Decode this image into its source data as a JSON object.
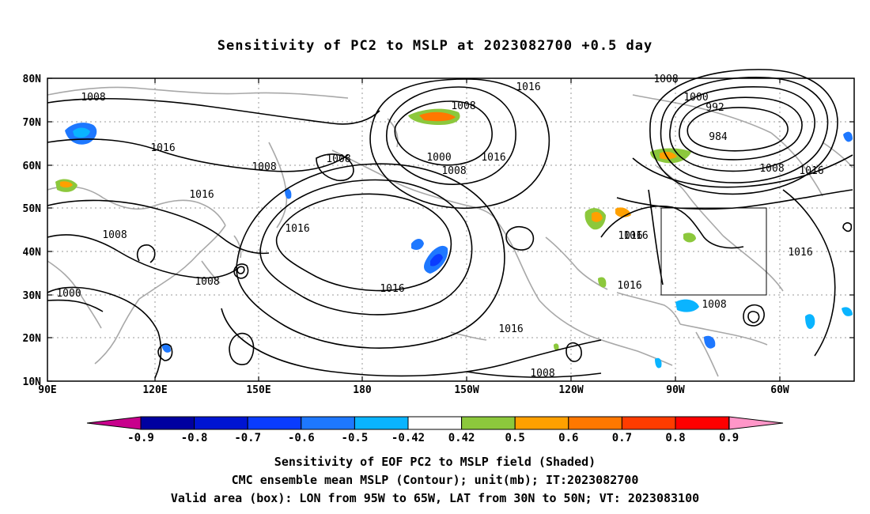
{
  "title": "Sensitivity of PC2 to MSLP at 2023082700 +0.5 day",
  "lat_labels": [
    "80N",
    "70N",
    "60N",
    "50N",
    "40N",
    "30N",
    "20N",
    "10N"
  ],
  "lon_labels": [
    "90E",
    "120E",
    "150E",
    "180",
    "150W",
    "120W",
    "90W",
    "60W"
  ],
  "contour_labels": [
    "1016",
    "1008",
    "1008",
    "1016",
    "1016",
    "1008",
    "1008",
    "1016",
    "1008",
    "1000",
    "1008",
    "1008",
    "1000",
    "1016",
    "1016",
    "1016",
    "1016",
    "1008",
    "1016",
    "1008",
    "1000",
    "992",
    "984",
    "1008",
    "1016",
    "1016",
    "1016",
    "1008"
  ],
  "colorbar": {
    "labels": [
      "-0.9",
      "-0.8",
      "-0.7",
      "-0.6",
      "-0.5",
      "-0.42",
      "0.42",
      "0.5",
      "0.6",
      "0.7",
      "0.8",
      "0.9"
    ],
    "colors": [
      "#c8008c",
      "#0000a0",
      "#0014d2",
      "#0a3cff",
      "#1e78ff",
      "#0ab4ff",
      "#ffffff",
      "#8cc83c",
      "#ffa000",
      "#ff7800",
      "#ff3c00",
      "#ff0000",
      "#ff96c8"
    ]
  },
  "valid_box": {
    "lon_from": "95W",
    "lon_to": "65W",
    "lat_from": "30N",
    "lat_to": "50N"
  },
  "captions": [
    "Sensitivity of EOF PC2 to MSLP field (Shaded)",
    "CMC ensemble mean MSLP (Contour); unit(mb); IT:2023082700",
    "Valid area (box): LON from 95W to 65W, LAT from 30N to 50N; VT: 2023083100"
  ]
}
